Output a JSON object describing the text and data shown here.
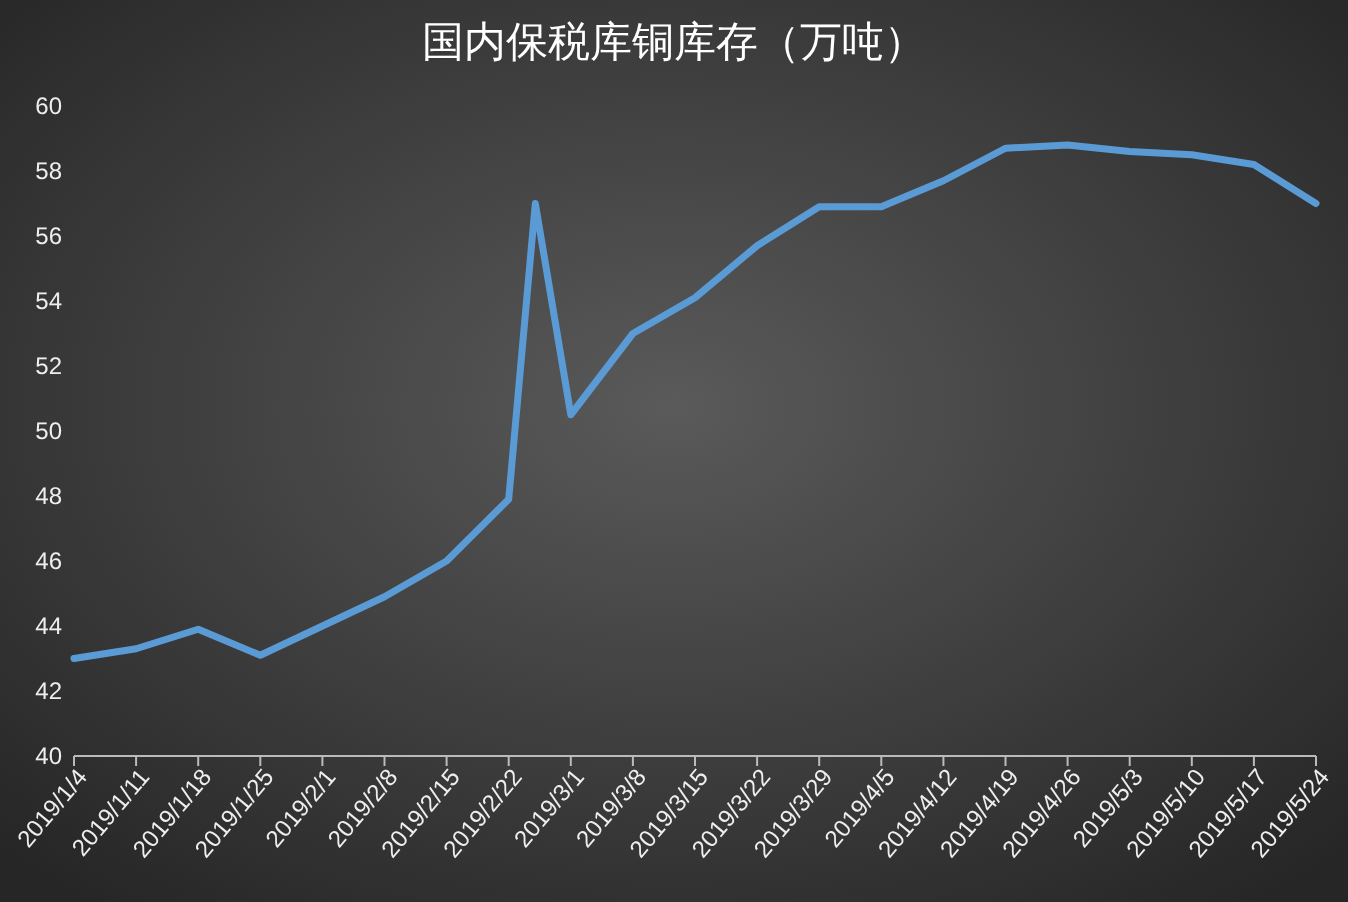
{
  "chart_data": {
    "type": "line",
    "title": "国内保税库铜库存（万吨）",
    "x": [
      "2019-01-04",
      "2019-01-11",
      "2019-01-18",
      "2019-01-25",
      "2019-02-01",
      "2019-02-08",
      "2019-02-15",
      "2019-02-22",
      "2019-02-25",
      "2019-03-01",
      "2019-03-08",
      "2019-03-15",
      "2019-03-22",
      "2019-03-29",
      "2019-04-05",
      "2019-04-12",
      "2019-04-19",
      "2019-04-26",
      "2019-05-03",
      "2019-05-10",
      "2019-05-17",
      "2019-05-24"
    ],
    "series": [
      {
        "color": "#5b9bd5",
        "values": [
          43.0,
          43.3,
          43.9,
          43.1,
          44.0,
          44.9,
          46.0,
          47.9,
          57.0,
          50.5,
          53.0,
          54.1,
          55.7,
          56.9,
          56.9,
          57.7,
          58.7,
          58.8,
          58.6,
          58.5,
          58.2,
          57.0
        ]
      }
    ],
    "xlim": [
      "2019-01-04",
      "2019-05-24"
    ],
    "xticks": [
      {
        "value": "2019-01-04",
        "label": "2019/1/4"
      },
      {
        "value": "2019-01-11",
        "label": "2019/1/11"
      },
      {
        "value": "2019-01-18",
        "label": "2019/1/18"
      },
      {
        "value": "2019-01-25",
        "label": "2019/1/25"
      },
      {
        "value": "2019-02-01",
        "label": "2019/2/1"
      },
      {
        "value": "2019-02-08",
        "label": "2019/2/8"
      },
      {
        "value": "2019-02-15",
        "label": "2019/2/15"
      },
      {
        "value": "2019-02-22",
        "label": "2019/2/22"
      },
      {
        "value": "2019-03-01",
        "label": "2019/3/1"
      },
      {
        "value": "2019-03-08",
        "label": "2019/3/8"
      },
      {
        "value": "2019-03-15",
        "label": "2019/3/15"
      },
      {
        "value": "2019-03-22",
        "label": "2019/3/22"
      },
      {
        "value": "2019-03-29",
        "label": "2019/3/29"
      },
      {
        "value": "2019-04-05",
        "label": "2019/4/5"
      },
      {
        "value": "2019-04-12",
        "label": "2019/4/12"
      },
      {
        "value": "2019-04-19",
        "label": "2019/4/19"
      },
      {
        "value": "2019-04-26",
        "label": "2019/4/26"
      },
      {
        "value": "2019-05-03",
        "label": "2019/5/3"
      },
      {
        "value": "2019-05-10",
        "label": "2019/5/10"
      },
      {
        "value": "2019-05-17",
        "label": "2019/5/17"
      },
      {
        "value": "2019-05-24",
        "label": "2019/5/24"
      }
    ],
    "ylim": [
      40,
      60
    ],
    "yticks": [
      40,
      42,
      44,
      46,
      48,
      50,
      52,
      54,
      56,
      58,
      60
    ],
    "marker": "none",
    "line_style": "solid"
  }
}
